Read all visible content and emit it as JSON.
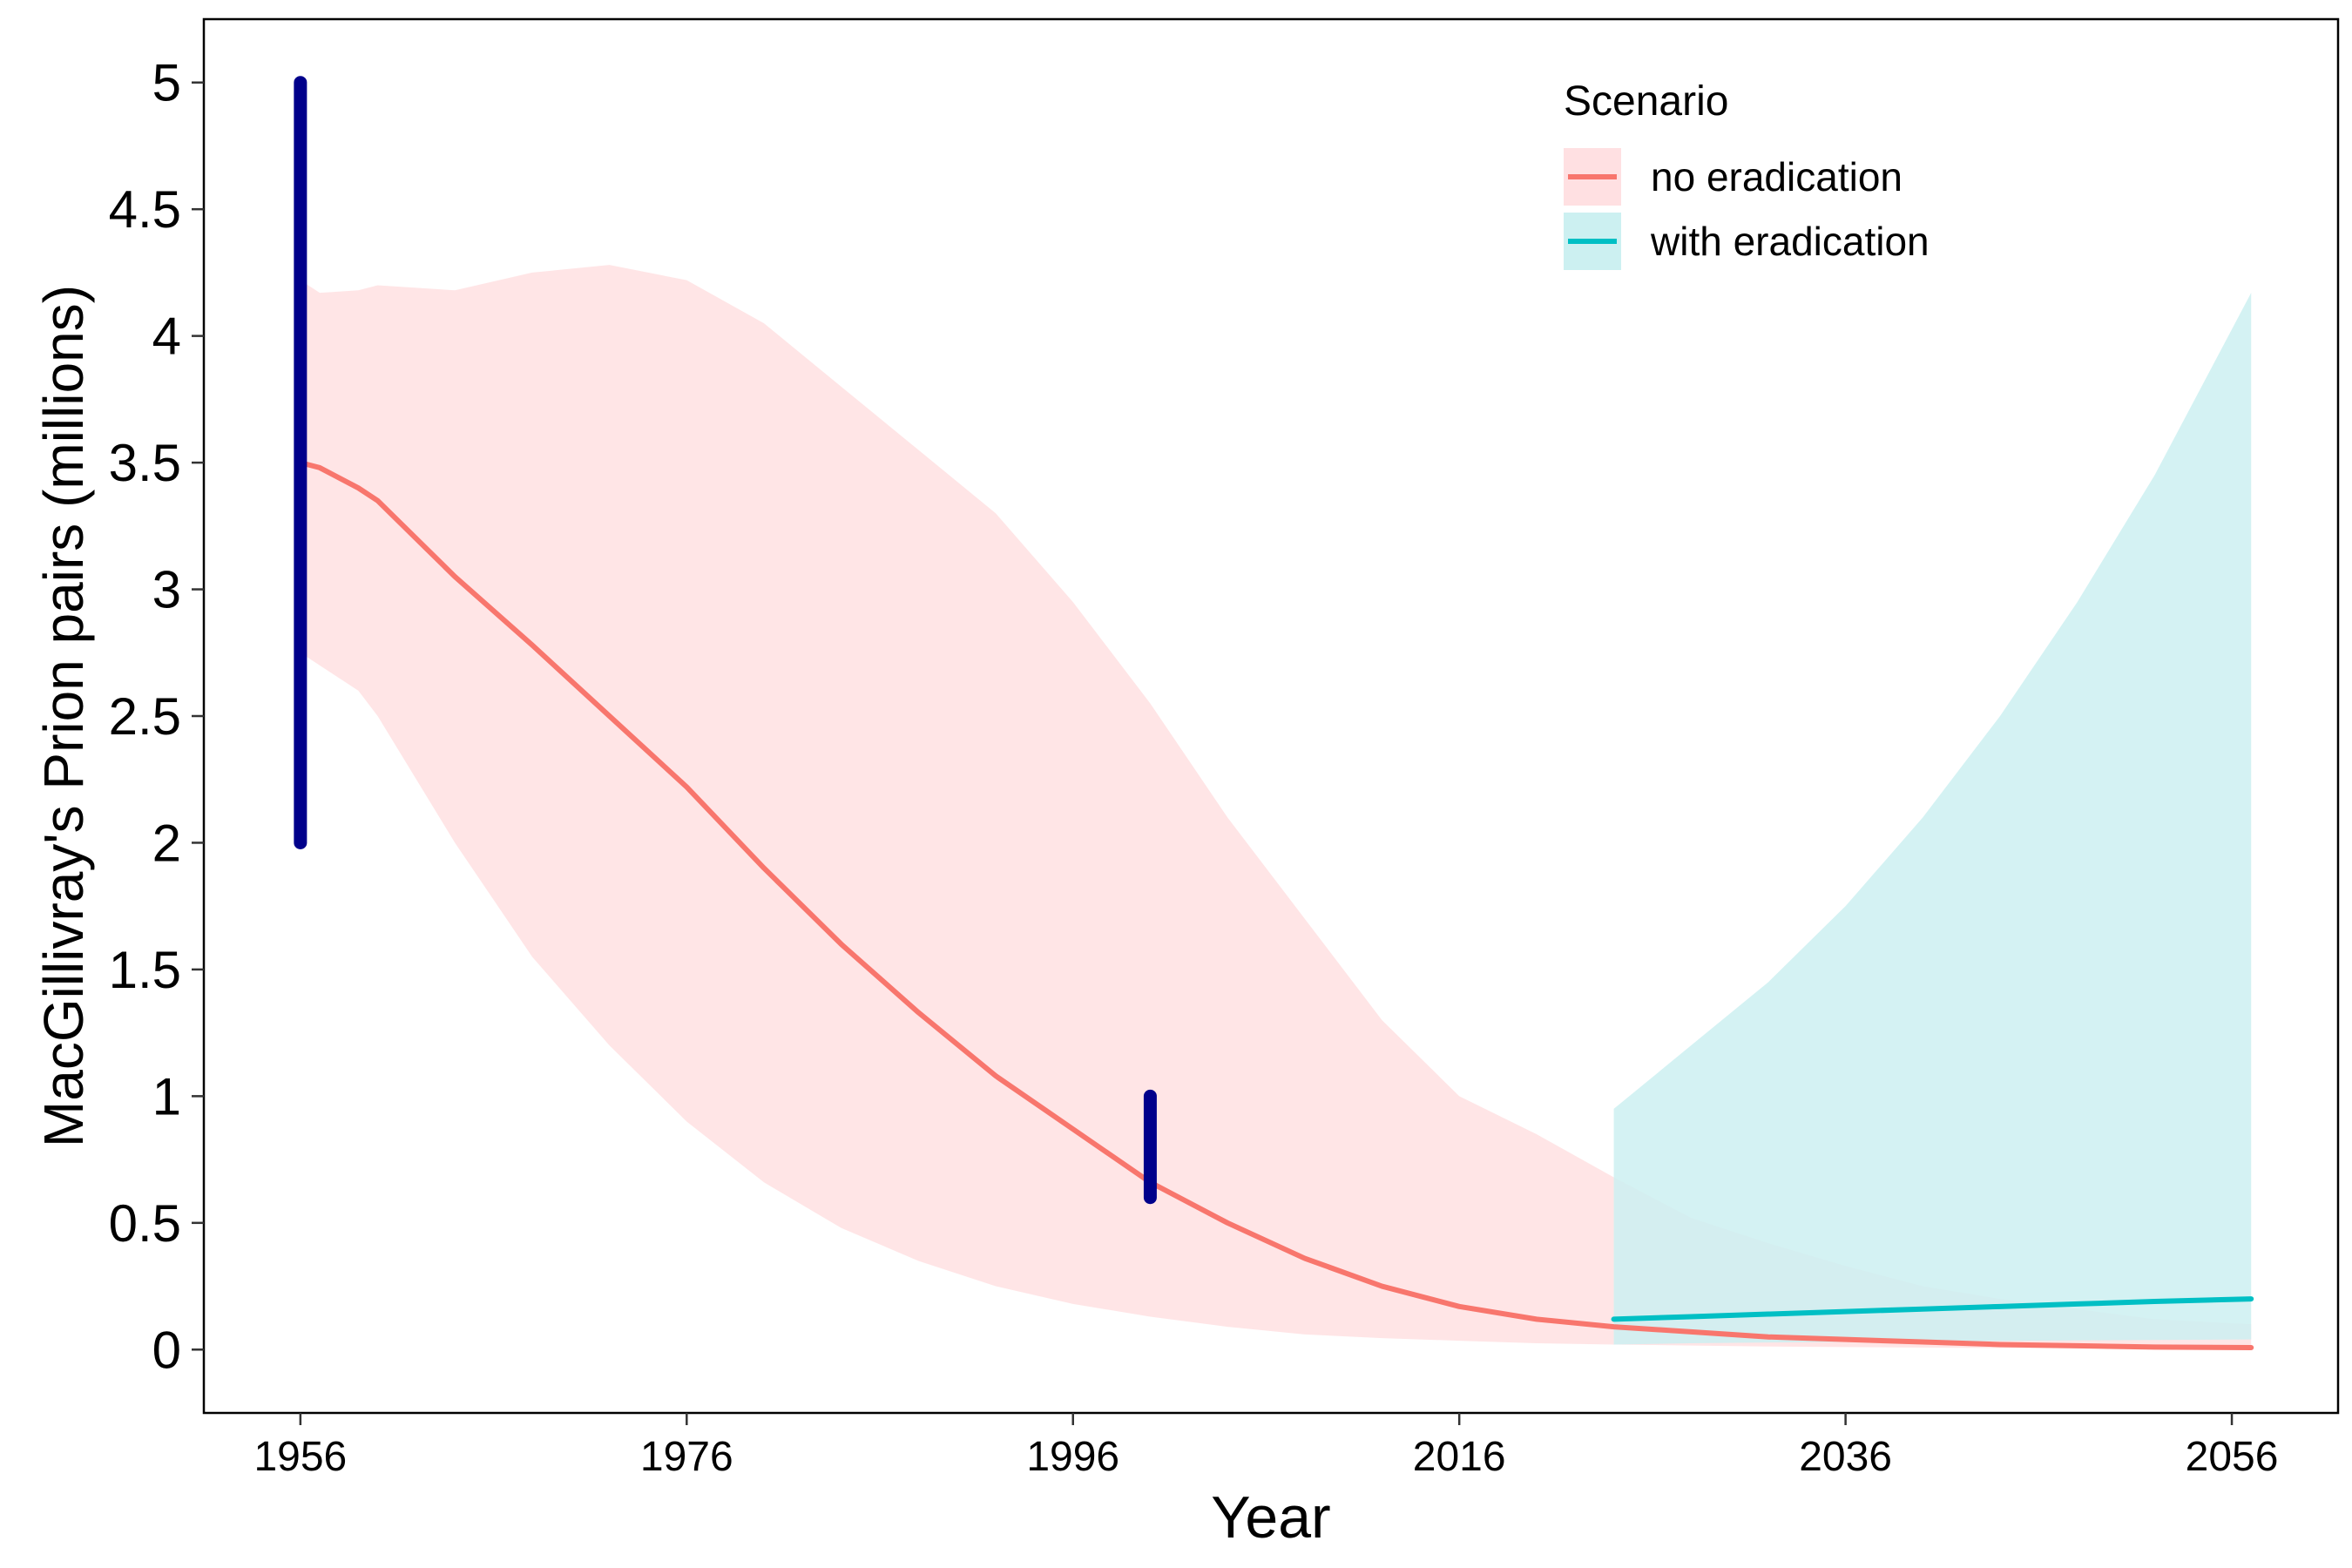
{
  "chart_data": {
    "type": "line",
    "title": "",
    "xlabel": "Year",
    "ylabel": "MacGillivray's Prion pairs (millions)",
    "xlim": [
      1951,
      2061.5
    ],
    "ylim": [
      -0.25,
      5.25
    ],
    "x_ticks": [
      "1956",
      "1976",
      "1996",
      "2016",
      "2036",
      "2056"
    ],
    "x_tick_values": [
      1956,
      1976,
      1996,
      2016,
      2036,
      2056
    ],
    "y_ticks": [
      "0",
      "0.5",
      "1",
      "1.5",
      "2",
      "2.5",
      "3",
      "3.5",
      "4",
      "4.5",
      "5"
    ],
    "y_tick_values": [
      0,
      0.5,
      1,
      1.5,
      2,
      2.5,
      3,
      3.5,
      4,
      4.5,
      5
    ],
    "grid": false,
    "legend": {
      "title": "Scenario",
      "position": "top-right",
      "entries": [
        "no eradication",
        "with eradication"
      ]
    },
    "series": [
      {
        "name": "no eradication",
        "color": "#F8766D",
        "band_color": "#FFE0E2",
        "x": [
          1956,
          1957,
          1959,
          1960,
          1964,
          1968,
          1972,
          1976,
          1980,
          1984,
          1988,
          1992,
          1996,
          2000,
          2004,
          2008,
          2012,
          2016,
          2020,
          2024,
          2028,
          2032,
          2036,
          2040,
          2044,
          2048,
          2052,
          2057
        ],
        "values": [
          3.5,
          3.48,
          3.4,
          3.35,
          3.05,
          2.78,
          2.5,
          2.22,
          1.9,
          1.6,
          1.33,
          1.08,
          0.87,
          0.66,
          0.5,
          0.36,
          0.25,
          0.17,
          0.12,
          0.09,
          0.07,
          0.05,
          0.04,
          0.03,
          0.02,
          0.015,
          0.01,
          0.008
        ],
        "lower": [
          2.75,
          2.7,
          2.6,
          2.5,
          2.0,
          1.55,
          1.2,
          0.9,
          0.66,
          0.48,
          0.35,
          0.25,
          0.18,
          0.13,
          0.09,
          0.06,
          0.045,
          0.035,
          0.025,
          0.02,
          0.016,
          0.012,
          0.01,
          0.008,
          0.006,
          0.005,
          0.004,
          0.003
        ],
        "upper": [
          4.22,
          4.17,
          4.18,
          4.2,
          4.18,
          4.25,
          4.28,
          4.22,
          4.05,
          3.8,
          3.55,
          3.3,
          2.95,
          2.55,
          2.1,
          1.7,
          1.3,
          1.0,
          0.85,
          0.68,
          0.52,
          0.42,
          0.33,
          0.25,
          0.2,
          0.16,
          0.12,
          0.1
        ]
      },
      {
        "name": "with eradication",
        "color": "#00BFC4",
        "band_color": "#CCF0F1",
        "x": [
          2024,
          2028,
          2032,
          2036,
          2040,
          2044,
          2048,
          2052,
          2057
        ],
        "values": [
          0.12,
          0.13,
          0.14,
          0.15,
          0.16,
          0.17,
          0.18,
          0.19,
          0.2
        ],
        "lower": [
          0.02,
          0.025,
          0.028,
          0.03,
          0.032,
          0.034,
          0.036,
          0.038,
          0.04
        ],
        "upper": [
          0.95,
          1.2,
          1.45,
          1.75,
          2.1,
          2.5,
          2.95,
          3.45,
          4.17
        ]
      }
    ],
    "observations": [
      {
        "x": 1956,
        "ymin": 2.0,
        "ymax": 5.0,
        "color": "#00008B"
      },
      {
        "x": 2000,
        "ymin": 0.6,
        "ymax": 1.0,
        "color": "#00008B"
      }
    ]
  }
}
